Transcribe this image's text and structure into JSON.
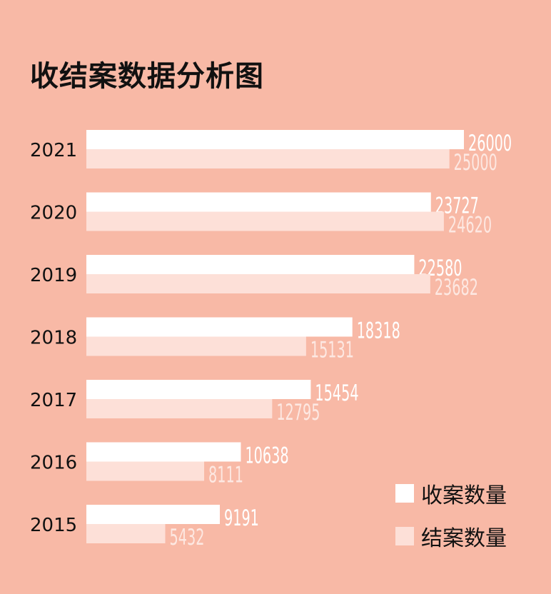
{
  "colors": {
    "background": "#f8b9a6",
    "received": "#ffffff",
    "closed": "#fde0d8"
  },
  "chart_data": {
    "type": "bar",
    "orientation": "horizontal",
    "title": "收结案数据分析图",
    "categories": [
      "2021",
      "2020",
      "2019",
      "2018",
      "2017",
      "2016",
      "2015"
    ],
    "series": [
      {
        "name": "收案数量",
        "values": [
          26000,
          23727,
          22580,
          18318,
          15454,
          10638,
          9191
        ]
      },
      {
        "name": "结案数量",
        "values": [
          25000,
          24620,
          23682,
          15131,
          12795,
          8111,
          5432
        ]
      }
    ],
    "xlim": [
      0,
      26000
    ],
    "grid": false,
    "legend": "bottom-right"
  }
}
